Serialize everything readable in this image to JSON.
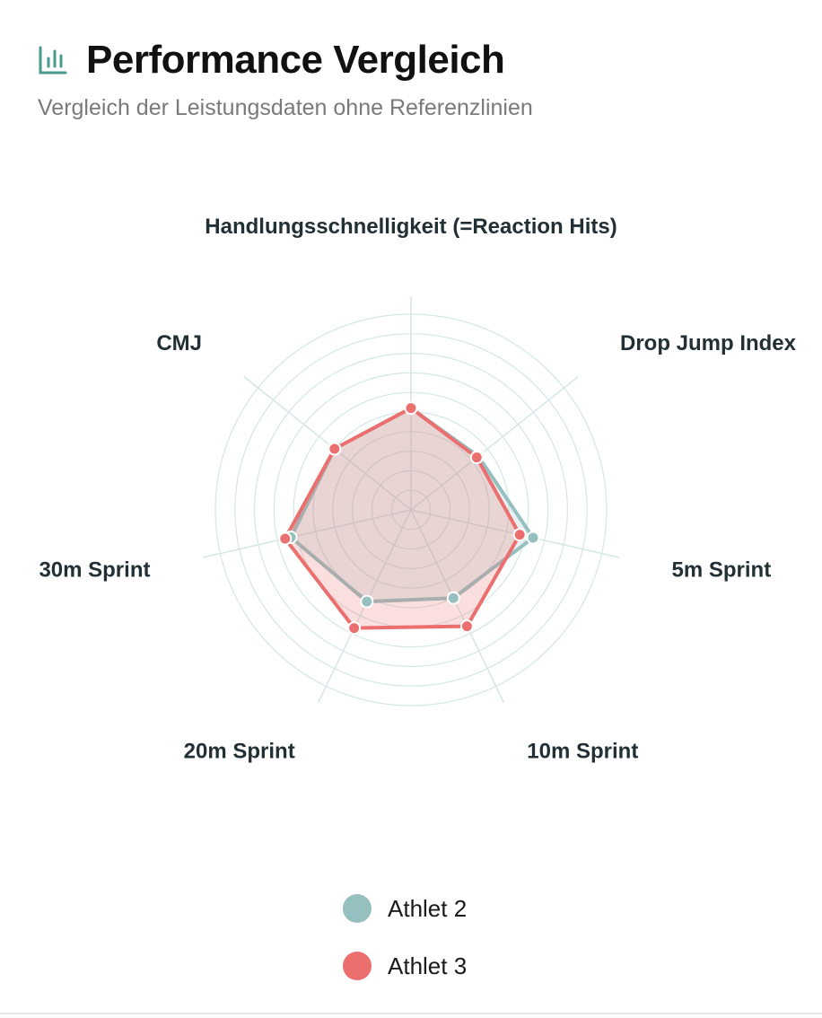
{
  "header": {
    "title": "Performance Vergleich",
    "subtitle": "Vergleich der Leistungsdaten ohne Referenzlinien",
    "icon": "bar-chart-icon"
  },
  "colors": {
    "accent": "#4a9a8f",
    "grid": "#d6e6e6",
    "series": [
      "#96bfbf",
      "#ec6f6f"
    ]
  },
  "chart_data": {
    "type": "radar",
    "axes": [
      "Handlungsschnelligkeit (=Reaction Hits)",
      "Drop Jump Index",
      "5m Sprint",
      "10m Sprint",
      "20m Sprint",
      "30m Sprint",
      "CMJ"
    ],
    "range": [
      0,
      100
    ],
    "grid_rings": 10,
    "series": [
      {
        "name": "Athlet 2",
        "values": [
          52,
          44,
          64,
          50,
          52,
          63,
          50
        ]
      },
      {
        "name": "Athlet 3",
        "values": [
          52,
          43,
          57,
          66,
          67,
          66,
          50
        ]
      }
    ],
    "legend_position": "bottom"
  }
}
